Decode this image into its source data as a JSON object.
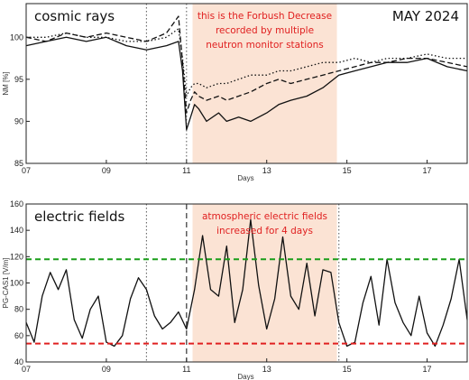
{
  "chart_data": [
    {
      "type": "line",
      "title": "cosmic rays",
      "label_right": "MAY 2024",
      "annotation": [
        "this is the Forbush Decrease",
        "recorded by multiple",
        "neutron monitor stations"
      ],
      "xlabel": "Days",
      "ylabel": "NM [%]",
      "xlim": [
        7,
        18
      ],
      "ylim": [
        85,
        104
      ],
      "xticks": [
        "07",
        "09",
        "11",
        "13",
        "15",
        "17"
      ],
      "yticks": [
        "85",
        "90",
        "95",
        "100"
      ],
      "highlight_range": [
        11.15,
        14.75
      ],
      "vlines_dotted": [
        10,
        11
      ],
      "vlines_dashed": [],
      "series": [
        {
          "style": "solid",
          "x": [
            7.0,
            7.5,
            8.0,
            8.5,
            9.0,
            9.5,
            10.0,
            10.5,
            10.8,
            10.9,
            11.0,
            11.1,
            11.2,
            11.3,
            11.5,
            11.8,
            12.0,
            12.3,
            12.6,
            13.0,
            13.3,
            13.6,
            14.0,
            14.4,
            14.8,
            15.2,
            15.6,
            16.0,
            16.5,
            17.0,
            17.5,
            18.0
          ],
          "y": [
            99,
            99.5,
            100,
            99.5,
            100,
            99,
            98.5,
            99,
            99.5,
            96,
            89,
            90.5,
            92,
            91.5,
            90,
            91,
            90,
            90.5,
            90,
            91,
            92,
            92.5,
            93,
            94,
            95.5,
            96,
            96.5,
            97,
            97,
            97.5,
            96.5,
            96
          ]
        },
        {
          "style": "dashed",
          "x": [
            7.0,
            7.5,
            8.0,
            8.5,
            9.0,
            9.5,
            10.0,
            10.5,
            10.8,
            10.9,
            11.0,
            11.1,
            11.2,
            11.3,
            11.5,
            11.8,
            12.0,
            12.3,
            12.6,
            13.0,
            13.3,
            13.6,
            14.0,
            14.4,
            14.8,
            15.2,
            15.6,
            16.0,
            16.5,
            17.0,
            17.5,
            18.0
          ],
          "y": [
            100,
            99.5,
            100.5,
            100,
            100.5,
            100,
            99.5,
            100.5,
            102.5,
            97,
            91,
            92.5,
            93.5,
            93,
            92.5,
            93,
            92.5,
            93,
            93.5,
            94.5,
            95,
            94.5,
            95,
            95.5,
            96,
            96.5,
            97,
            97,
            97.5,
            97.5,
            97,
            96.5
          ]
        },
        {
          "style": "dotted",
          "x": [
            7.0,
            7.5,
            8.0,
            8.5,
            9.0,
            9.5,
            10.0,
            10.5,
            10.8,
            10.9,
            11.0,
            11.1,
            11.2,
            11.3,
            11.5,
            11.8,
            12.0,
            12.3,
            12.6,
            13.0,
            13.3,
            13.6,
            14.0,
            14.4,
            14.8,
            15.2,
            15.6,
            16.0,
            16.5,
            17.0,
            17.5,
            18.0
          ],
          "y": [
            100,
            100,
            100.5,
            100,
            100,
            99.5,
            99.5,
            100,
            101,
            97.5,
            93,
            94,
            94.5,
            94.5,
            94,
            94.5,
            94.5,
            95,
            95.5,
            95.5,
            96,
            96,
            96.5,
            97,
            97,
            97.5,
            97,
            97.5,
            97.5,
            98,
            97.5,
            97.5
          ]
        }
      ]
    },
    {
      "type": "line",
      "title": "electric fields",
      "annotation": [
        "atmospheric electric fields",
        "increased for 4 days"
      ],
      "xlabel": "Days",
      "ylabel": "PG-CAS1 [V/m]",
      "xlim": [
        7,
        18
      ],
      "ylim": [
        40,
        160
      ],
      "xticks": [
        "07",
        "09",
        "11",
        "13",
        "15",
        "17"
      ],
      "yticks": [
        "40",
        "60",
        "80",
        "100",
        "120",
        "140",
        "160"
      ],
      "highlight_range": [
        11.15,
        14.75
      ],
      "vlines_dotted": [
        10,
        14.8
      ],
      "vlines_dashed": [
        11
      ],
      "hlines": [
        {
          "value": 118,
          "color": "#1a9e1a"
        },
        {
          "value": 54,
          "color": "#e02020"
        }
      ],
      "series": [
        {
          "style": "solid",
          "x": [
            7.0,
            7.2,
            7.4,
            7.6,
            7.8,
            8.0,
            8.2,
            8.4,
            8.6,
            8.8,
            9.0,
            9.2,
            9.4,
            9.6,
            9.8,
            10.0,
            10.2,
            10.4,
            10.6,
            10.8,
            11.0,
            11.2,
            11.4,
            11.6,
            11.8,
            12.0,
            12.2,
            12.4,
            12.6,
            12.8,
            13.0,
            13.2,
            13.4,
            13.6,
            13.8,
            14.0,
            14.2,
            14.4,
            14.6,
            14.8,
            15.0,
            15.2,
            15.4,
            15.6,
            15.8,
            16.0,
            16.2,
            16.4,
            16.6,
            16.8,
            17.0,
            17.2,
            17.4,
            17.6,
            17.8,
            18.0
          ],
          "y": [
            70,
            55,
            90,
            108,
            95,
            110,
            72,
            58,
            80,
            90,
            55,
            52,
            60,
            88,
            104,
            95,
            75,
            65,
            70,
            78,
            65,
            95,
            136,
            95,
            90,
            128,
            70,
            95,
            148,
            98,
            65,
            88,
            135,
            90,
            80,
            115,
            75,
            110,
            108,
            70,
            52,
            55,
            85,
            105,
            68,
            118,
            85,
            70,
            60,
            90,
            62,
            52,
            68,
            88,
            118,
            72
          ]
        }
      ]
    }
  ]
}
